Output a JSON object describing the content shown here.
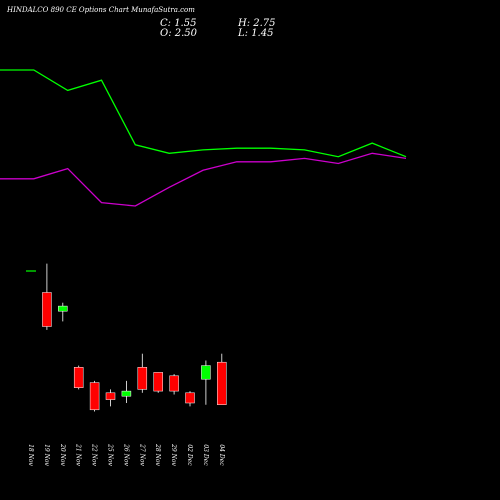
{
  "header": {
    "title": "HINDALCO 890 CE Options Chart MunafaSutra.com",
    "open_close": {
      "c_label": "C: 1.55",
      "o_label": "O: 2.50"
    },
    "high_low": {
      "h_label": "H: 2.75",
      "l_label": "L: 1.45"
    }
  },
  "colors": {
    "background": "#000000",
    "up": "#00ff00",
    "down": "#ff0000",
    "upper_line": "#00ff00",
    "lower_line": "#cc00cc"
  },
  "chart_data": {
    "type": "candlestick",
    "categories": [
      "18 Nov",
      "19 Nov",
      "20 Nov",
      "21 Nov",
      "22 Nov",
      "25 Nov",
      "26 Nov",
      "27 Nov",
      "28 Nov",
      "29 Nov",
      "02 Dec",
      "03 Dec",
      "04 Dec"
    ],
    "candles": [
      {
        "date": "18 Nov",
        "open": 10.8,
        "high": 10.8,
        "low": 10.8,
        "close": 10.8
      },
      {
        "date": "19 Nov",
        "open": 9.5,
        "high": 11.2,
        "low": 7.3,
        "close": 7.5
      },
      {
        "date": "20 Nov",
        "open": 8.4,
        "high": 8.9,
        "low": 7.8,
        "close": 8.7
      },
      {
        "date": "21 Nov",
        "open": 5.1,
        "high": 5.2,
        "low": 3.8,
        "close": 3.9
      },
      {
        "date": "22 Nov",
        "open": 4.2,
        "high": 4.3,
        "low": 2.5,
        "close": 2.6
      },
      {
        "date": "25 Nov",
        "open": 3.6,
        "high": 3.8,
        "low": 2.8,
        "close": 3.2
      },
      {
        "date": "26 Nov",
        "open": 3.4,
        "high": 4.3,
        "low": 3.0,
        "close": 3.7
      },
      {
        "date": "27 Nov",
        "open": 5.1,
        "high": 5.9,
        "low": 3.6,
        "close": 3.8
      },
      {
        "date": "28 Nov",
        "open": 4.8,
        "high": 4.8,
        "low": 3.6,
        "close": 3.7
      },
      {
        "date": "29 Nov",
        "open": 4.6,
        "high": 4.7,
        "low": 3.5,
        "close": 3.7
      },
      {
        "date": "02 Dec",
        "open": 3.6,
        "high": 3.7,
        "low": 2.8,
        "close": 3.0
      },
      {
        "date": "03 Dec",
        "open": 4.4,
        "high": 5.5,
        "low": 2.9,
        "close": 5.2
      },
      {
        "date": "04 Dec",
        "open": 5.4,
        "high": 5.9,
        "low": 2.9,
        "close": 2.9
      }
    ],
    "upper_line": [
      100,
      100,
      88,
      94,
      56,
      51,
      53,
      54,
      54,
      53,
      49,
      57,
      49
    ],
    "lower_line": [
      36,
      36,
      42,
      22,
      20,
      31,
      41,
      46,
      46,
      48,
      45,
      51,
      48
    ],
    "ylim": [
      2.0,
      12.0
    ],
    "line_ylim": [
      0,
      100
    ],
    "grid": false
  }
}
